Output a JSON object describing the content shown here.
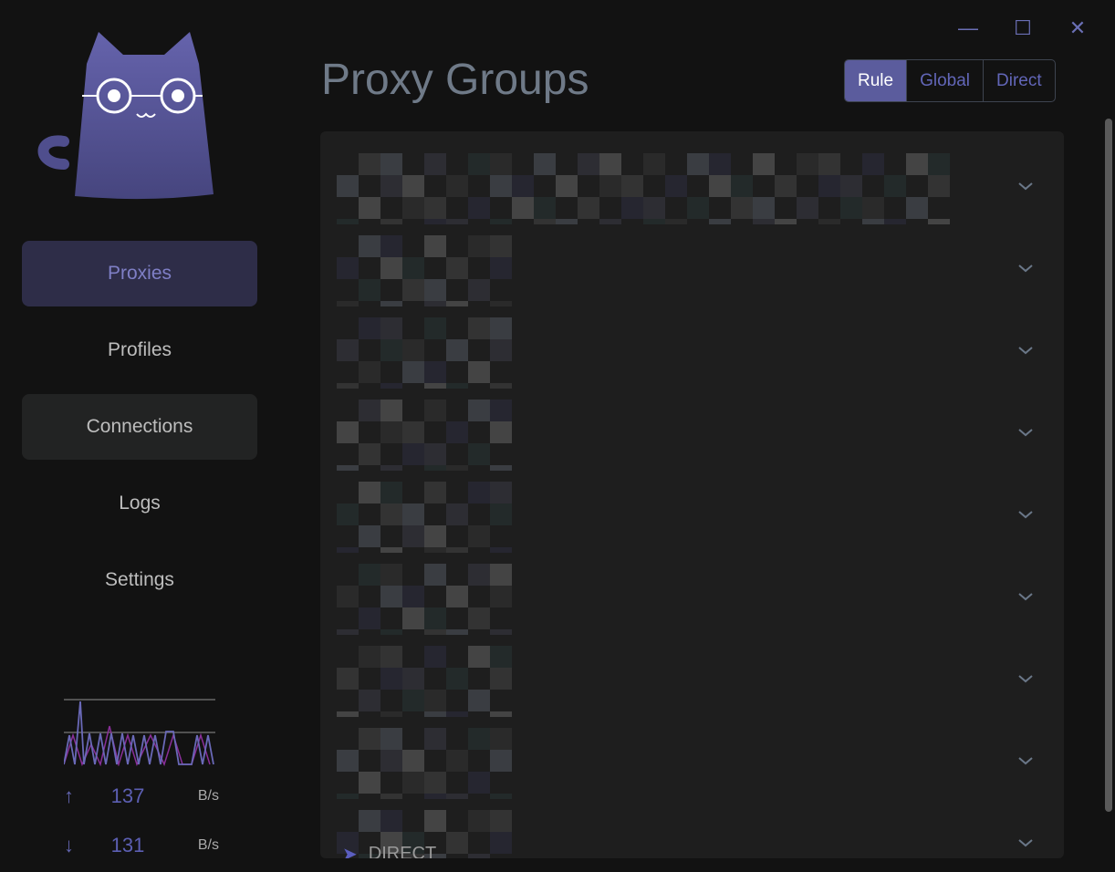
{
  "window": {
    "minimize_icon": "minimize-icon",
    "maximize_icon": "maximize-icon",
    "close_icon": "close-icon"
  },
  "sidebar": {
    "items": [
      {
        "label": "Proxies",
        "state": "active"
      },
      {
        "label": "Profiles"
      },
      {
        "label": "Connections",
        "state": "hover"
      },
      {
        "label": "Logs"
      },
      {
        "label": "Settings"
      }
    ],
    "traffic": {
      "upload": "137",
      "upload_unit": "B/s",
      "download": "131",
      "download_unit": "B/s"
    }
  },
  "header": {
    "title": "Proxy Groups",
    "modes": [
      "Rule",
      "Global",
      "Direct"
    ],
    "selected_mode": "Rule"
  },
  "groups_count": 9,
  "last_group_current": "DIRECT",
  "colors": {
    "accent": "#5b5c9d",
    "background": "#121212",
    "card": "#1e1e1e"
  }
}
